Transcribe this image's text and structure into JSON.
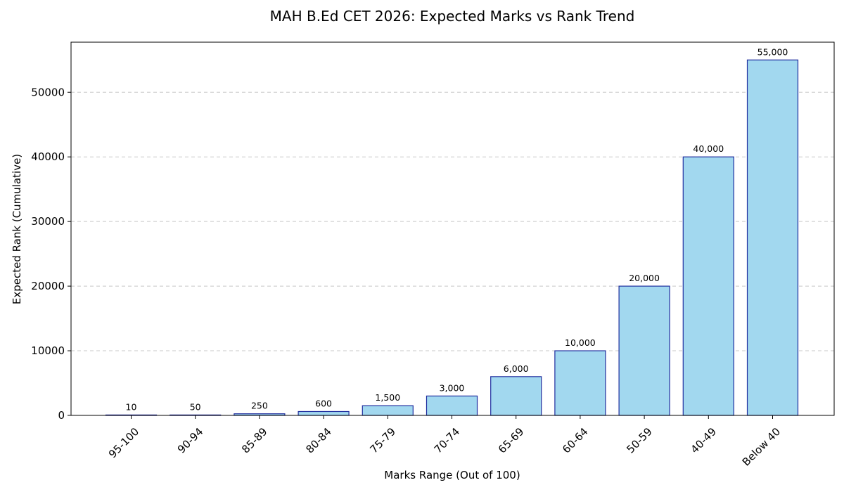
{
  "chart_data": {
    "type": "bar",
    "title": "MAH B.Ed CET 2026: Expected Marks vs Rank Trend",
    "xlabel": "Marks Range (Out of 100)",
    "ylabel": "Expected Rank (Cumulative)",
    "categories": [
      "95-100",
      "90-94",
      "85-89",
      "80-84",
      "75-79",
      "70-74",
      "65-69",
      "60-64",
      "50-59",
      "40-49",
      "Below 40"
    ],
    "values": [
      10,
      50,
      250,
      600,
      1500,
      3000,
      6000,
      10000,
      20000,
      40000,
      55000
    ],
    "data_labels": [
      "10",
      "50",
      "250",
      "600",
      "1,500",
      "3,000",
      "6,000",
      "10,000",
      "20,000",
      "40,000",
      "55,000"
    ],
    "ylim": [
      0,
      57750
    ],
    "yticks": [
      0,
      10000,
      20000,
      30000,
      40000,
      50000
    ],
    "ytick_labels": [
      "0",
      "10000",
      "20000",
      "30000",
      "40000",
      "50000"
    ],
    "grid": "y-dashed",
    "bar_color": "#a2d8ef",
    "bar_edge_color": "#1f2d9e"
  }
}
